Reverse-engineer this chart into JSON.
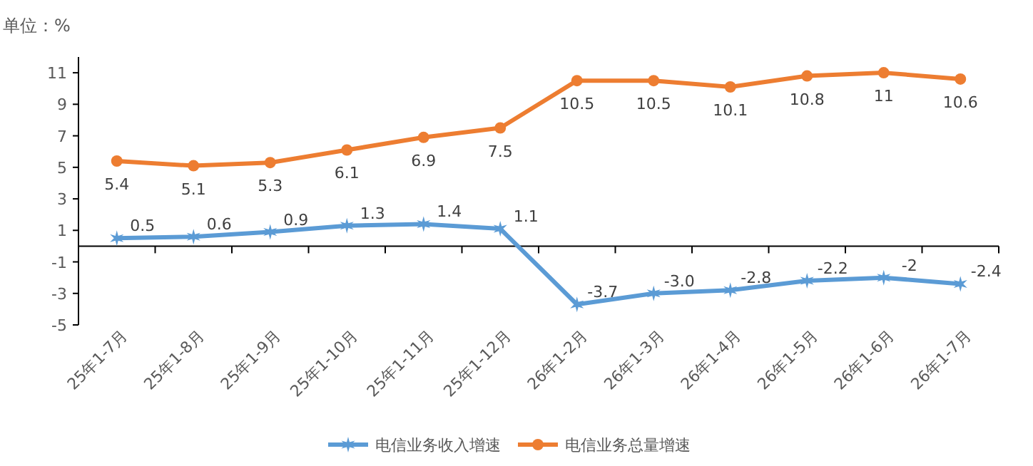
{
  "chart_data": {
    "type": "line",
    "ylabel": "单位：%",
    "categories": [
      "25年1-7月",
      "25年1-8月",
      "25年1-9月",
      "25年1-10月",
      "25年1-11月",
      "25年1-12月",
      "26年1-2月",
      "26年1-3月",
      "26年1-4月",
      "26年1-5月",
      "26年1-6月",
      "26年1-7月"
    ],
    "series": [
      {
        "name": "电信业务收入增速",
        "color": "#5b9bd5",
        "marker": "cross",
        "values": [
          0.5,
          0.6,
          0.9,
          1.3,
          1.4,
          1.1,
          -3.7,
          -3.0,
          -2.8,
          -2.2,
          -2,
          -2.4
        ],
        "value_labels": [
          "0.5",
          "0.6",
          "0.9",
          "1.3",
          "1.4",
          "1.1",
          "-3.7",
          "-3.0",
          "-2.8",
          "-2.2",
          "-2",
          "-2.4"
        ]
      },
      {
        "name": "电信业务总量增速",
        "color": "#ed7d31",
        "marker": "circle",
        "values": [
          5.4,
          5.1,
          5.3,
          6.1,
          6.9,
          7.5,
          10.5,
          10.5,
          10.1,
          10.8,
          11,
          10.6
        ],
        "value_labels": [
          "5.4",
          "5.1",
          "5.3",
          "6.1",
          "6.9",
          "7.5",
          "10.5",
          "10.5",
          "10.1",
          "10.8",
          "11",
          "10.6"
        ]
      }
    ],
    "ylim": [
      -5,
      12
    ],
    "yticks": [
      -5,
      -3,
      -1,
      1,
      3,
      5,
      7,
      9,
      11
    ],
    "grid": false,
    "legend": "bottom"
  }
}
